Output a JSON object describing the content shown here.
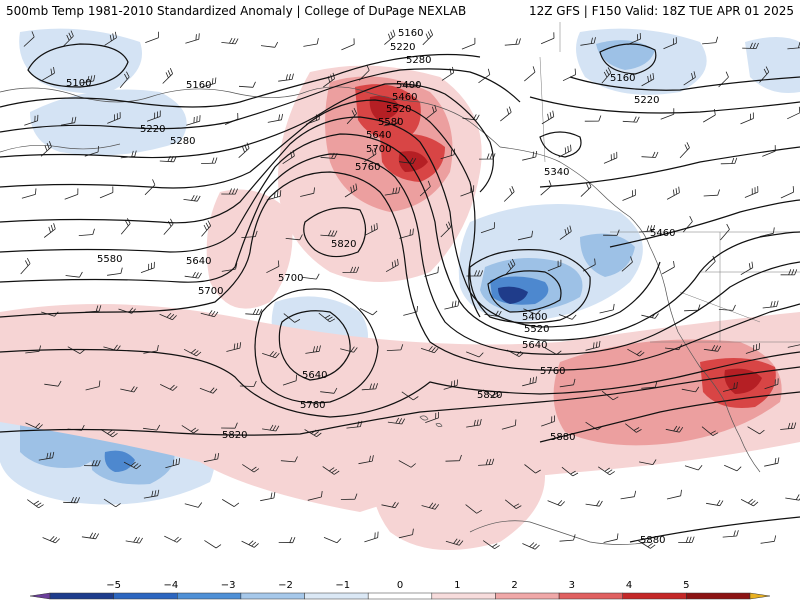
{
  "header": {
    "left_title": "500mb Temp 1981-2010 Standardized Anomaly | College of DuPage NEXLAB",
    "right_title": "12Z GFS | F150 Valid: 18Z TUE APR 01 2025"
  },
  "contours": {
    "labels": [
      "5160",
      "5220",
      "5280",
      "5400",
      "5460",
      "5520",
      "5580",
      "5640",
      "5700",
      "5760",
      "5100",
      "5160",
      "5220",
      "5280",
      "5340",
      "5160",
      "5220",
      "5460",
      "5820",
      "5580",
      "5640",
      "5700",
      "5700",
      "5640",
      "5760",
      "5400",
      "5520",
      "5640",
      "5760",
      "5820",
      "5820",
      "5880",
      "5880"
    ]
  },
  "colorbar": {
    "ticks": [
      "−5",
      "−4",
      "−3",
      "−2",
      "−1",
      "0",
      "1",
      "2",
      "3",
      "4",
      "5"
    ],
    "colors": [
      "#6a3d9a",
      "#1e3c8c",
      "#2c66c0",
      "#4f90d6",
      "#a6c8ea",
      "#dbe8f5",
      "#ffffff",
      "#f7dcdc",
      "#f0a8a8",
      "#e06060",
      "#c42828",
      "#8c1414",
      "#e8b020"
    ]
  },
  "colors": {
    "warm_light": "#f6d4d4",
    "warm_mid": "#ec9f9f",
    "warm_strong": "#d84545",
    "warm_extreme": "#b51f24",
    "cool_light": "#d4e3f4",
    "cool_mid": "#9dc1e6",
    "cool_strong": "#4d88cf",
    "cool_extreme": "#1f3c8a"
  }
}
